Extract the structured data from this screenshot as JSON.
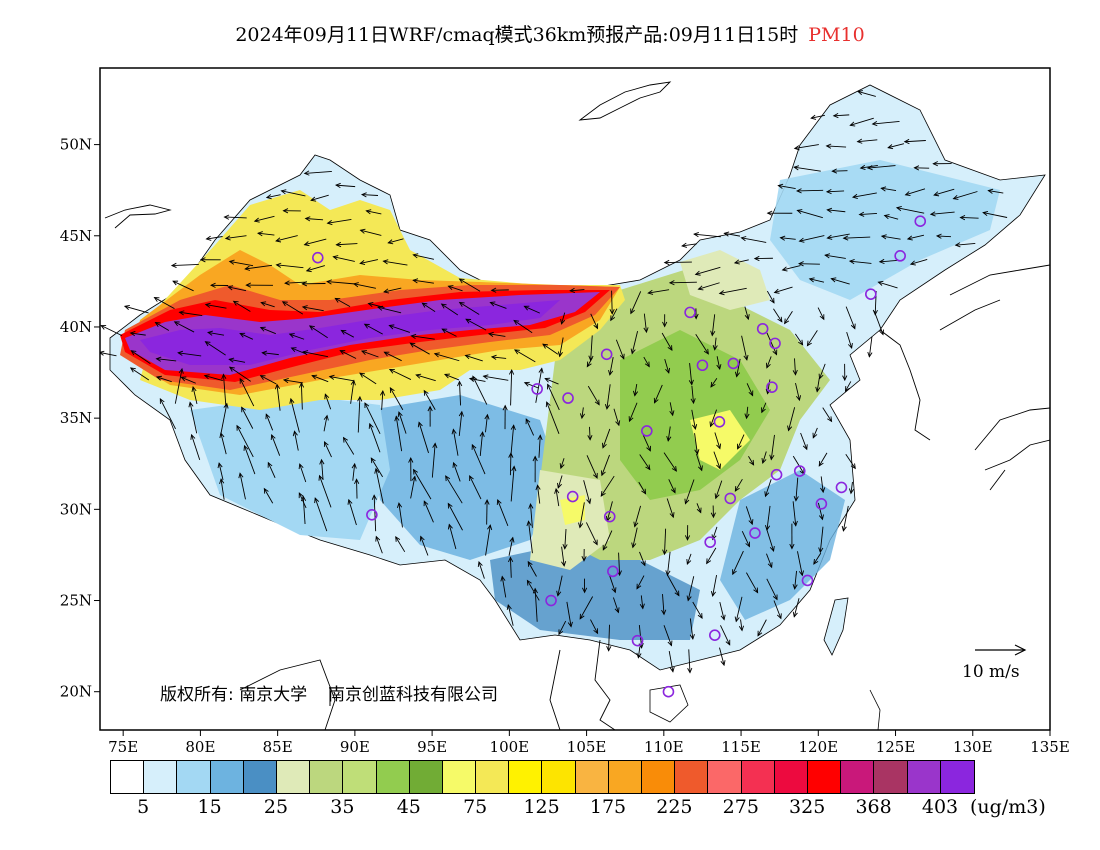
{
  "title": {
    "main": "2024年09月11日WRF/cmaq模式36km预报产品:09月11日15时",
    "pollutant": "PM10",
    "pollutant_color": "#e8302e"
  },
  "axes": {
    "lat_labels": [
      "20N",
      "25N",
      "30N",
      "35N",
      "40N",
      "45N",
      "50N"
    ],
    "lon_labels": [
      "75E",
      "80E",
      "85E",
      "90E",
      "95E",
      "100E",
      "105E",
      "110E",
      "115E",
      "120E",
      "125E",
      "130E",
      "135E"
    ]
  },
  "copyright": {
    "prefix": "版权所有:",
    "org1": "南京大学",
    "org2": "南京创蓝科技有限公司"
  },
  "wind_reference": {
    "label": "10 m/s"
  },
  "colorbar": {
    "colors": [
      "#ffffff",
      "#d6effb",
      "#a3d8f3",
      "#6db3e0",
      "#4a8fc4",
      "#dfeab8",
      "#bcd77e",
      "#bfde78",
      "#92cc4f",
      "#71ac35",
      "#f6fa68",
      "#f4e856",
      "#fff200",
      "#fde400",
      "#f9b441",
      "#f9a722",
      "#f98c08",
      "#ef5a2c",
      "#fb6868",
      "#f43052",
      "#ed0a3f",
      "#ff0000",
      "#c9187a",
      "#a93463",
      "#9a35cb",
      "#8b26de"
    ],
    "tick_labels": [
      "5",
      "15",
      "25",
      "35",
      "45",
      "75",
      "125",
      "175",
      "225",
      "275",
      "325",
      "368",
      "403"
    ],
    "units": "(ug/m3)"
  },
  "stations": [
    {
      "lon": 87.6,
      "lat": 43.8
    },
    {
      "lon": 101.8,
      "lat": 36.6
    },
    {
      "lon": 103.8,
      "lat": 36.1
    },
    {
      "lon": 106.3,
      "lat": 38.5
    },
    {
      "lon": 111.7,
      "lat": 40.8
    },
    {
      "lon": 116.4,
      "lat": 39.9
    },
    {
      "lon": 117.2,
      "lat": 39.1
    },
    {
      "lon": 114.5,
      "lat": 38.0
    },
    {
      "lon": 112.5,
      "lat": 37.9
    },
    {
      "lon": 117.0,
      "lat": 36.7
    },
    {
      "lon": 113.6,
      "lat": 34.8
    },
    {
      "lon": 108.9,
      "lat": 34.3
    },
    {
      "lon": 104.1,
      "lat": 30.7
    },
    {
      "lon": 106.5,
      "lat": 29.6
    },
    {
      "lon": 114.3,
      "lat": 30.6
    },
    {
      "lon": 117.3,
      "lat": 31.9
    },
    {
      "lon": 118.8,
      "lat": 32.1
    },
    {
      "lon": 121.5,
      "lat": 31.2
    },
    {
      "lon": 120.2,
      "lat": 30.3
    },
    {
      "lon": 115.9,
      "lat": 28.7
    },
    {
      "lon": 113.0,
      "lat": 28.2
    },
    {
      "lon": 106.7,
      "lat": 26.6
    },
    {
      "lon": 102.7,
      "lat": 25.0
    },
    {
      "lon": 119.3,
      "lat": 26.1
    },
    {
      "lon": 113.3,
      "lat": 23.1
    },
    {
      "lon": 108.3,
      "lat": 22.8
    },
    {
      "lon": 110.3,
      "lat": 20.0
    },
    {
      "lon": 91.1,
      "lat": 29.7
    },
    {
      "lon": 126.6,
      "lat": 45.8
    },
    {
      "lon": 125.3,
      "lat": 43.9
    },
    {
      "lon": 123.4,
      "lat": 41.8
    }
  ]
}
